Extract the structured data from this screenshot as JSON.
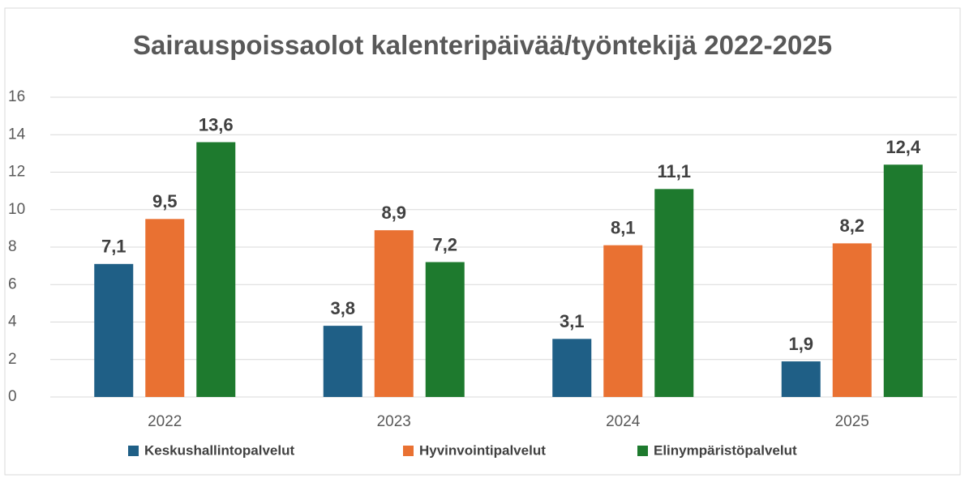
{
  "chart_data": {
    "type": "bar",
    "title": "Sairauspoissaolot kalenteripäivää/työntekijä 2022-2025",
    "categories": [
      "2022",
      "2023",
      "2024",
      "2025"
    ],
    "series": [
      {
        "name": "Keskushallintopalvelut",
        "color": "#1f5f86",
        "values": [
          7.1,
          3.8,
          3.1,
          1.9
        ],
        "value_labels": [
          "7,1",
          "3,8",
          "3,1",
          "1,9"
        ]
      },
      {
        "name": "Hyvinvointipalvelut",
        "color": "#e97132",
        "values": [
          9.5,
          8.9,
          8.1,
          8.2
        ],
        "value_labels": [
          "9,5",
          "8,9",
          "8,1",
          "8,2"
        ]
      },
      {
        "name": "Elinympäristöpalvelut",
        "color": "#1e7a2e",
        "values": [
          13.6,
          7.2,
          11.1,
          12.4
        ],
        "value_labels": [
          "13,6",
          "7,2",
          "11,1",
          "12,4"
        ]
      }
    ],
    "ylim": [
      0,
      16
    ],
    "yticks": [
      0,
      2,
      4,
      6,
      8,
      10,
      12,
      14,
      16
    ],
    "grid": true,
    "legend": "bottom"
  }
}
